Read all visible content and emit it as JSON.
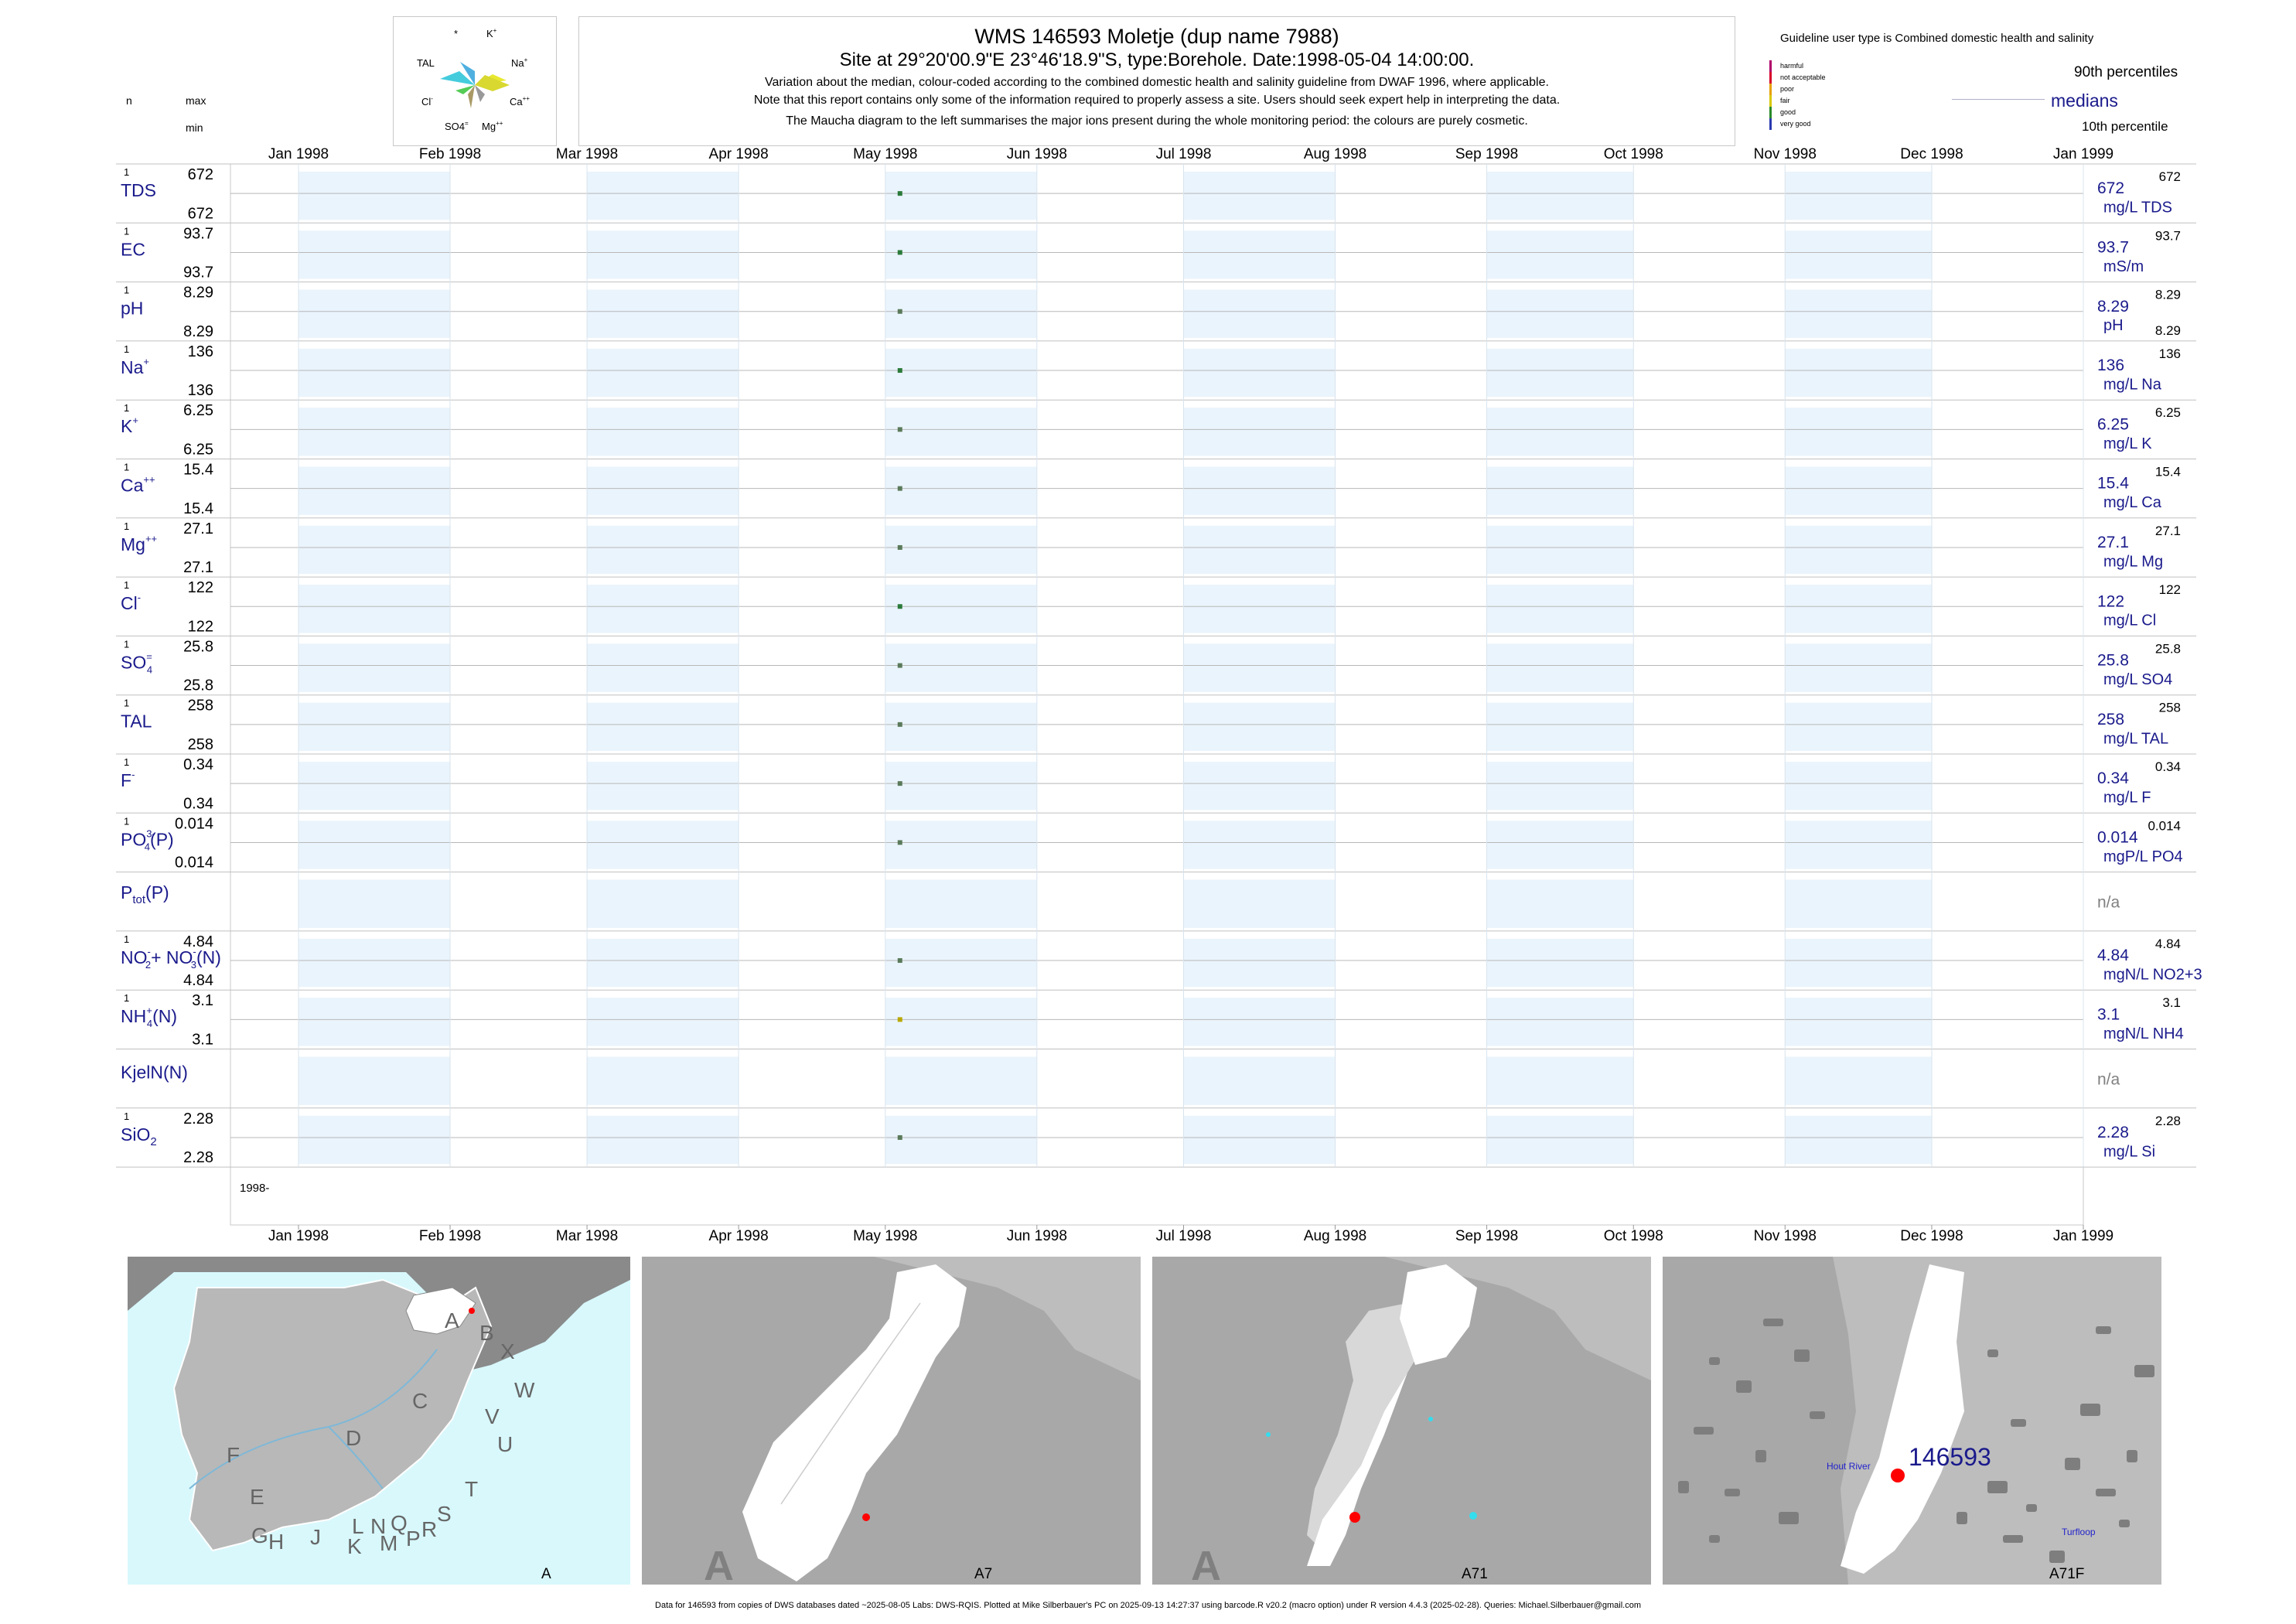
{
  "header": {
    "title": "WMS 146593  Moletje (dup name 7988)",
    "site": "Site at 29°20'00.9\"E 23°46'18.9\"S, type:Borehole. Date:1998-05-04 14:00:00.",
    "notes": [
      "Variation about the median,  colour-coded according to the combined domestic health and salinity guideline from DWAF 1996, where applicable.",
      "Note that this report contains only some of the information required to properly assess a site. Users should seek expert help in interpreting the data.",
      "The Maucha diagram to the left summarises the major ions present during the whole monitoring period: the colours are purely cosmetic."
    ]
  },
  "maucha": {
    "labels": [
      "*",
      "K",
      "TAL",
      "Na",
      "Cl",
      "Ca",
      "SO4",
      "Mg"
    ]
  },
  "left_headers": {
    "n": "n",
    "max": "max",
    "min": "min"
  },
  "guideline": {
    "title": "Guideline user type is Combined domestic health and salinity",
    "categories": [
      {
        "label": "harmful",
        "color": "#b0006a"
      },
      {
        "label": "not acceptable",
        "color": "#d8002a"
      },
      {
        "label": "poor",
        "color": "#e8a000"
      },
      {
        "label": "fair",
        "color": "#d8c800"
      },
      {
        "label": "good",
        "color": "#2a8a2a"
      },
      {
        "label": "very good",
        "color": "#2a3ab0"
      }
    ],
    "legend": {
      "p90": "90th percentiles",
      "medians": "medians",
      "p10": "10th percentile"
    }
  },
  "chart_data": {
    "type": "scatter",
    "x_range": [
      "1998-01-01",
      "1999-01-01"
    ],
    "x_ticks": [
      "Jan 1998",
      "Feb 1998",
      "Mar 1998",
      "Apr 1998",
      "May 1998",
      "Jun 1998",
      "Jul 1998",
      "Aug 1998",
      "Sep 1998",
      "Oct 1998",
      "Nov 1998",
      "Dec 1998",
      "Jan 1999"
    ],
    "x_axis_year_label": "1998-",
    "sample_date": "1998-05-04",
    "panels": [
      {
        "label": "TDS",
        "n": "1",
        "max": "672",
        "min": "672",
        "value": "672",
        "unit": "mg/L TDS",
        "p90": "672",
        "p10": "",
        "color": "#2a7a3a"
      },
      {
        "label": "EC",
        "n": "1",
        "max": "93.7",
        "min": "93.7",
        "value": "93.7",
        "unit": "mS/m",
        "p90": "93.7",
        "p10": "",
        "color": "#2a7a3a"
      },
      {
        "label": "pH",
        "n": "1",
        "max": "8.29",
        "min": "8.29",
        "value": "8.29",
        "unit": "pH",
        "p90": "8.29",
        "p10": "8.29",
        "color": "#5a7a5a"
      },
      {
        "label": "Na",
        "sup": "+",
        "n": "1",
        "max": "136",
        "min": "136",
        "value": "136",
        "unit": "mg/L Na",
        "p90": "136",
        "p10": "",
        "color": "#2a7a3a"
      },
      {
        "label": "K",
        "sup": "+",
        "n": "1",
        "max": "6.25",
        "min": "6.25",
        "value": "6.25",
        "unit": "mg/L K",
        "p90": "6.25",
        "p10": "",
        "color": "#5a7a5a"
      },
      {
        "label": "Ca",
        "sup": "++",
        "n": "1",
        "max": "15.4",
        "min": "15.4",
        "value": "15.4",
        "unit": "mg/L Ca",
        "p90": "15.4",
        "p10": "",
        "color": "#5a7a5a"
      },
      {
        "label": "Mg",
        "sup": "++",
        "n": "1",
        "max": "27.1",
        "min": "27.1",
        "value": "27.1",
        "unit": "mg/L Mg",
        "p90": "27.1",
        "p10": "",
        "color": "#5a7a5a"
      },
      {
        "label": "Cl",
        "sup": "-",
        "n": "1",
        "max": "122",
        "min": "122",
        "value": "122",
        "unit": "mg/L Cl",
        "p90": "122",
        "p10": "",
        "color": "#2a7a3a"
      },
      {
        "label": "SO",
        "sub": "4",
        "sup": "=",
        "n": "1",
        "max": "25.8",
        "min": "25.8",
        "value": "25.8",
        "unit": "mg/L SO4",
        "p90": "25.8",
        "p10": "",
        "color": "#5a7a5a"
      },
      {
        "label": "TAL",
        "n": "1",
        "max": "258",
        "min": "258",
        "value": "258",
        "unit": "mg/L TAL",
        "p90": "258",
        "p10": "",
        "color": "#5a7a5a"
      },
      {
        "label": "F",
        "sup": "-",
        "n": "1",
        "max": "0.34",
        "min": "0.34",
        "value": "0.34",
        "unit": "mg/L F",
        "p90": "0.34",
        "p10": "",
        "color": "#5a7a5a"
      },
      {
        "label": "PO",
        "sub": "4",
        "sup": "3-",
        "tail": "(P)",
        "n": "1",
        "max": "0.014",
        "min": "0.014",
        "value": "0.014",
        "unit": "mgP/L PO4",
        "p90": "0.014",
        "p10": "",
        "color": "#5a7a5a"
      },
      {
        "label": "P",
        "sub": "tot",
        "tail": "(P)",
        "n": "",
        "max": "",
        "min": "",
        "value": "n/a",
        "unit": "",
        "p90": "",
        "p10": "",
        "color": ""
      },
      {
        "label": "NO",
        "sub": "2",
        "sup": "-",
        "tail": "+ NO",
        "sub2": "3",
        "sup2": "-",
        "tail2": "(N)",
        "n": "1",
        "max": "4.84",
        "min": "4.84",
        "value": "4.84",
        "unit": "mgN/L NO2+3",
        "p90": "4.84",
        "p10": "",
        "color": "#5a7a5a"
      },
      {
        "label": "NH",
        "sub": "4",
        "sup": "+",
        "tail": "(N)",
        "n": "1",
        "max": "3.1",
        "min": "3.1",
        "value": "3.1",
        "unit": "mgN/L NH4",
        "p90": "3.1",
        "p10": "",
        "color": "#b8a800"
      },
      {
        "label": "KjelN(N)",
        "n": "",
        "max": "",
        "min": "",
        "value": "n/a",
        "unit": "",
        "p90": "",
        "p10": "",
        "color": ""
      },
      {
        "label": "SiO",
        "sub": "2",
        "n": "1",
        "max": "2.28",
        "min": "2.28",
        "value": "2.28",
        "unit": "mg/L Si",
        "p90": "2.28",
        "p10": "",
        "color": "#5a7a5a"
      }
    ]
  },
  "maps": [
    {
      "caption": "A",
      "letters": [
        "A",
        "B",
        "X",
        "C",
        "W",
        "D",
        "V",
        "U",
        "F",
        "T",
        "E",
        "S",
        "L",
        "N",
        "Q",
        "R",
        "G",
        "H",
        "J",
        "K",
        "M",
        "P"
      ]
    },
    {
      "caption": "A7",
      "big": "A"
    },
    {
      "caption": "A71",
      "big": "A"
    },
    {
      "caption": "A71F",
      "site_label": "146593",
      "places": [
        "Hout River",
        "Turfloop"
      ]
    }
  ],
  "colors": {
    "accent": "#1a1a8c",
    "month_band": "#eaf4fc",
    "ocean": "#d8f8fc",
    "marker": "#ff0000"
  },
  "footer": "Data for 146593 from copies of DWS databases dated ~2025-08-05 Labs: DWS-RQIS. Plotted at Mike Silberbauer's PC on 2025-09-13 14:27:37 using barcode.R v20.2 (macro option) under R version 4.4.3 (2025-02-28). Queries: Michael.Silberbauer@gmail.com"
}
